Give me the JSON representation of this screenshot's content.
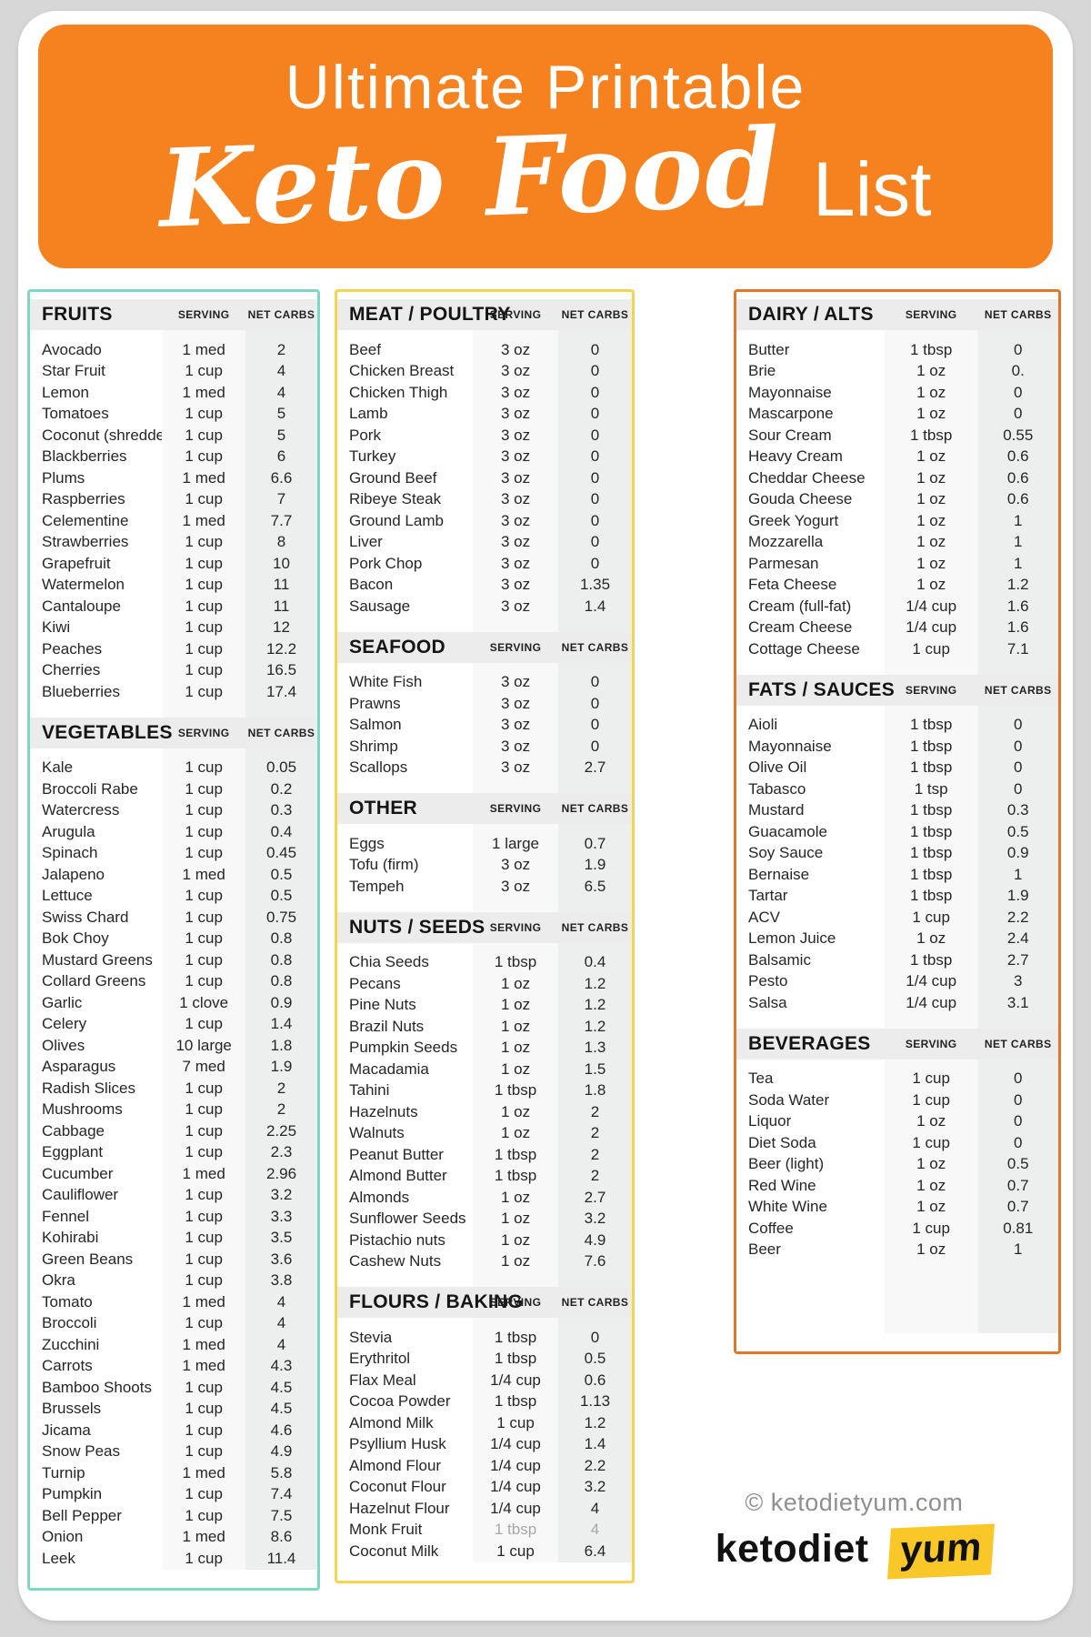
{
  "header": {
    "line1": "Ultimate Printable",
    "script_title": "Keto Food",
    "suffix": "List",
    "bg_color": "#f5821f"
  },
  "labels": {
    "serving": "SERVING",
    "net_carbs": "NET CARBS"
  },
  "columns": [
    {
      "accent_color": "#7ed7c2",
      "sections": [
        {
          "title": "FRUITS",
          "rows": [
            [
              "Avocado",
              "1 med",
              "2"
            ],
            [
              "Star Fruit",
              "1 cup",
              "4"
            ],
            [
              "Lemon",
              "1 med",
              "4"
            ],
            [
              "Tomatoes",
              "1 cup",
              "5"
            ],
            [
              "Coconut (shredded)",
              "1 cup",
              "5"
            ],
            [
              "Blackberries",
              "1 cup",
              "6"
            ],
            [
              "Plums",
              "1 med",
              "6.6"
            ],
            [
              "Raspberries",
              "1 cup",
              "7"
            ],
            [
              "Celementine",
              "1 med",
              "7.7"
            ],
            [
              "Strawberries",
              "1 cup",
              "8"
            ],
            [
              "Grapefruit",
              "1 cup",
              "10"
            ],
            [
              "Watermelon",
              "1 cup",
              "11"
            ],
            [
              "Cantaloupe",
              "1 cup",
              "11"
            ],
            [
              "Kiwi",
              "1 cup",
              "12"
            ],
            [
              "Peaches",
              "1 cup",
              "12.2"
            ],
            [
              "Cherries",
              "1 cup",
              "16.5"
            ],
            [
              "Blueberries",
              "1 cup",
              "17.4"
            ]
          ]
        },
        {
          "title": "VEGETABLES",
          "rows": [
            [
              "Kale",
              "1 cup",
              "0.05"
            ],
            [
              "Broccoli Rabe",
              "1 cup",
              "0.2"
            ],
            [
              "Watercress",
              "1 cup",
              "0.3"
            ],
            [
              "Arugula",
              "1 cup",
              "0.4"
            ],
            [
              "Spinach",
              "1 cup",
              "0.45"
            ],
            [
              "Jalapeno",
              "1 med",
              "0.5"
            ],
            [
              "Lettuce",
              "1 cup",
              "0.5"
            ],
            [
              "Swiss Chard",
              "1 cup",
              "0.75"
            ],
            [
              "Bok Choy",
              "1 cup",
              "0.8"
            ],
            [
              "Mustard Greens",
              "1 cup",
              "0.8"
            ],
            [
              "Collard Greens",
              "1 cup",
              "0.8"
            ],
            [
              "Garlic",
              "1 clove",
              "0.9"
            ],
            [
              "Celery",
              "1 cup",
              "1.4"
            ],
            [
              "Olives",
              "10 large",
              "1.8"
            ],
            [
              "Asparagus",
              "7 med",
              "1.9"
            ],
            [
              "Radish Slices",
              "1 cup",
              "2"
            ],
            [
              "Mushrooms",
              "1 cup",
              "2"
            ],
            [
              "Cabbage",
              "1 cup",
              "2.25"
            ],
            [
              "Eggplant",
              "1 cup",
              "2.3"
            ],
            [
              "Cucumber",
              "1 med",
              "2.96"
            ],
            [
              "Cauliflower",
              "1 cup",
              "3.2"
            ],
            [
              "Fennel",
              "1 cup",
              "3.3"
            ],
            [
              "Kohirabi",
              "1 cup",
              "3.5"
            ],
            [
              "Green Beans",
              "1 cup",
              "3.6"
            ],
            [
              "Okra",
              "1 cup",
              "3.8"
            ],
            [
              "Tomato",
              "1 med",
              "4"
            ],
            [
              "Broccoli",
              "1 cup",
              "4"
            ],
            [
              "Zucchini",
              "1 med",
              "4"
            ],
            [
              "Carrots",
              "1 med",
              "4.3"
            ],
            [
              "Bamboo Shoots",
              "1 cup",
              "4.5"
            ],
            [
              "Brussels",
              "1 cup",
              "4.5"
            ],
            [
              "Jicama",
              "1 cup",
              "4.6"
            ],
            [
              "Snow Peas",
              "1 cup",
              "4.9"
            ],
            [
              "Turnip",
              "1 med",
              "5.8"
            ],
            [
              "Pumpkin",
              "1 cup",
              "7.4"
            ],
            [
              "Bell Pepper",
              "1 cup",
              "7.5"
            ],
            [
              "Onion",
              "1 med",
              "8.6"
            ],
            [
              "Leek",
              "1 cup",
              "11.4"
            ]
          ]
        }
      ]
    },
    {
      "accent_color": "#f6d44f",
      "sections": [
        {
          "title": "MEAT / POULTRY",
          "rows": [
            [
              "Beef",
              "3 oz",
              "0"
            ],
            [
              "Chicken Breast",
              "3 oz",
              "0"
            ],
            [
              "Chicken Thigh",
              "3 oz",
              "0"
            ],
            [
              "Lamb",
              "3 oz",
              "0"
            ],
            [
              "Pork",
              "3 oz",
              "0"
            ],
            [
              "Turkey",
              "3 oz",
              "0"
            ],
            [
              "Ground Beef",
              "3 oz",
              "0"
            ],
            [
              "Ribeye Steak",
              "3 oz",
              "0"
            ],
            [
              "Ground Lamb",
              "3 oz",
              "0"
            ],
            [
              "Liver",
              "3 oz",
              "0"
            ],
            [
              "Pork Chop",
              "3 oz",
              "0"
            ],
            [
              "Bacon",
              "3 oz",
              "1.35"
            ],
            [
              "Sausage",
              "3 oz",
              "1.4"
            ]
          ]
        },
        {
          "title": "SEAFOOD",
          "rows": [
            [
              "White Fish",
              "3 oz",
              "0"
            ],
            [
              "Prawns",
              "3 oz",
              "0"
            ],
            [
              "Salmon",
              "3 oz",
              "0"
            ],
            [
              "Shrimp",
              "3 oz",
              "0"
            ],
            [
              "Scallops",
              "3 oz",
              "2.7"
            ]
          ]
        },
        {
          "title": "OTHER",
          "rows": [
            [
              "Eggs",
              "1 large",
              "0.7"
            ],
            [
              "Tofu (firm)",
              "3 oz",
              "1.9"
            ],
            [
              "Tempeh",
              "3 oz",
              "6.5"
            ]
          ]
        },
        {
          "title": "NUTS / SEEDS",
          "rows": [
            [
              "Chia Seeds",
              "1 tbsp",
              "0.4"
            ],
            [
              "Pecans",
              "1 oz",
              "1.2"
            ],
            [
              "Pine Nuts",
              "1 oz",
              "1.2"
            ],
            [
              "Brazil Nuts",
              "1 oz",
              "1.2"
            ],
            [
              "Pumpkin Seeds",
              "1 oz",
              "1.3"
            ],
            [
              "Macadamia",
              "1 oz",
              "1.5"
            ],
            [
              "Tahini",
              "1 tbsp",
              "1.8"
            ],
            [
              "Hazelnuts",
              "1 oz",
              "2"
            ],
            [
              "Walnuts",
              "1 oz",
              "2"
            ],
            [
              "Peanut Butter",
              "1 tbsp",
              "2"
            ],
            [
              "Almond Butter",
              "1 tbsp",
              "2"
            ],
            [
              "Almonds",
              "1 oz",
              "2.7"
            ],
            [
              "Sunflower Seeds",
              "1 oz",
              "3.2"
            ],
            [
              "Pistachio nuts",
              "1 oz",
              "4.9"
            ],
            [
              "Cashew Nuts",
              "1 oz",
              "7.6"
            ]
          ]
        },
        {
          "title": "FLOURS / BAKING",
          "rows": [
            [
              "Stevia",
              "1 tbsp",
              "0"
            ],
            [
              "Erythritol",
              "1 tbsp",
              "0.5"
            ],
            [
              "Flax Meal",
              "1/4 cup",
              "0.6"
            ],
            [
              "Cocoa Powder",
              "1 tbsp",
              "1.13"
            ],
            [
              "Almond Milk",
              "1 cup",
              "1.2"
            ],
            [
              "Psyllium Husk",
              "1/4 cup",
              "1.4"
            ],
            [
              "Almond Flour",
              "1/4 cup",
              "2.2"
            ],
            [
              "Coconut Flour",
              "1/4 cup",
              "3.2"
            ],
            [
              "Hazelnut Flour",
              "1/4 cup",
              "4"
            ],
            [
              "Monk Fruit",
              "1 tbsp",
              "4",
              "muted"
            ],
            [
              "Coconut Milk",
              "1 cup",
              "6.4"
            ]
          ]
        }
      ]
    },
    {
      "accent_color": "#e0772f",
      "spacer": true,
      "sections": [
        {
          "title": "DAIRY / ALTS",
          "rows": [
            [
              "Butter",
              "1 tbsp",
              "0"
            ],
            [
              "Brie",
              "1 oz",
              "0."
            ],
            [
              "Mayonnaise",
              "1 oz",
              "0"
            ],
            [
              "Mascarpone",
              "1 oz",
              "0"
            ],
            [
              "Sour Cream",
              "1 tbsp",
              "0.55"
            ],
            [
              "Heavy Cream",
              "1 oz",
              "0.6"
            ],
            [
              "Cheddar Cheese",
              "1 oz",
              "0.6"
            ],
            [
              "Gouda Cheese",
              "1 oz",
              "0.6"
            ],
            [
              "Greek Yogurt",
              "1 oz",
              "1"
            ],
            [
              "Mozzarella",
              "1 oz",
              "1"
            ],
            [
              "Parmesan",
              "1 oz",
              "1"
            ],
            [
              "Feta Cheese",
              "1 oz",
              "1.2"
            ],
            [
              "Cream (full-fat)",
              "1/4 cup",
              "1.6"
            ],
            [
              "Cream Cheese",
              "1/4 cup",
              "1.6"
            ],
            [
              "Cottage Cheese",
              "1 cup",
              "7.1"
            ]
          ]
        },
        {
          "title": "FATS / SAUCES",
          "rows": [
            [
              "Aioli",
              "1 tbsp",
              "0"
            ],
            [
              "Mayonnaise",
              "1 tbsp",
              "0"
            ],
            [
              "Olive Oil",
              "1 tbsp",
              "0"
            ],
            [
              "Tabasco",
              "1 tsp",
              "0"
            ],
            [
              "Mustard",
              "1 tbsp",
              "0.3"
            ],
            [
              "Guacamole",
              "1 tbsp",
              "0.5"
            ],
            [
              "Soy Sauce",
              "1 tbsp",
              "0.9"
            ],
            [
              "Bernaise",
              "1 tbsp",
              "1"
            ],
            [
              "Tartar",
              "1 tbsp",
              "1.9"
            ],
            [
              "ACV",
              "1 cup",
              "2.2"
            ],
            [
              "Lemon Juice",
              "1 oz",
              "2.4"
            ],
            [
              "Balsamic",
              "1 tbsp",
              "2.7"
            ],
            [
              "Pesto",
              "1/4 cup",
              "3"
            ],
            [
              "Salsa",
              "1/4 cup",
              "3.1"
            ]
          ]
        },
        {
          "title": "BEVERAGES",
          "rows": [
            [
              "Tea",
              "1 cup",
              "0"
            ],
            [
              "Soda Water",
              "1 cup",
              "0"
            ],
            [
              "Liquor",
              "1 oz",
              "0"
            ],
            [
              "Diet Soda",
              "1 cup",
              "0"
            ],
            [
              "Beer (light)",
              "1 oz",
              "0.5"
            ],
            [
              "Red Wine",
              "1 oz",
              "0.7"
            ],
            [
              "White Wine",
              "1 oz",
              "0.7"
            ],
            [
              "Coffee",
              "1 cup",
              "0.81"
            ],
            [
              "Beer",
              "1 oz",
              "1"
            ]
          ]
        }
      ]
    }
  ],
  "footer": {
    "copyright": "© ketodietyum.com",
    "logo_black": "ketodiet",
    "logo_yum": "yum",
    "yum_bg_color": "#f9c728"
  }
}
